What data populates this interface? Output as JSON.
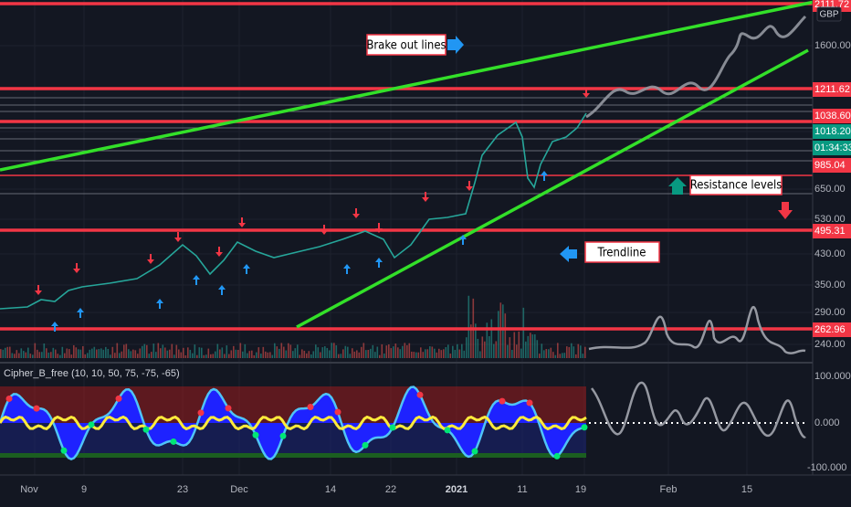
{
  "currency": "GBP",
  "price_axis": [
    "2111.72",
    "1600.00",
    "1211.62",
    "1038.60",
    "1018.20",
    "01:34:33",
    "985.04",
    "650.00",
    "530.00",
    "495.31",
    "430.00",
    "350.00",
    "290.00",
    "262.96",
    "240.00"
  ],
  "indicator": {
    "label": "Cipher_B_free (10, 10, 50, 75, -75, -65)",
    "axis": [
      "100.000",
      "0.000",
      "-100.000"
    ]
  },
  "time_axis": [
    "Nov",
    "9",
    "23",
    "Dec",
    "14",
    "22",
    "2021",
    "11",
    "19",
    "Feb",
    "15"
  ],
  "annotations": [
    "Brake out lines",
    "Resistance levels",
    "Trendline"
  ]
}
